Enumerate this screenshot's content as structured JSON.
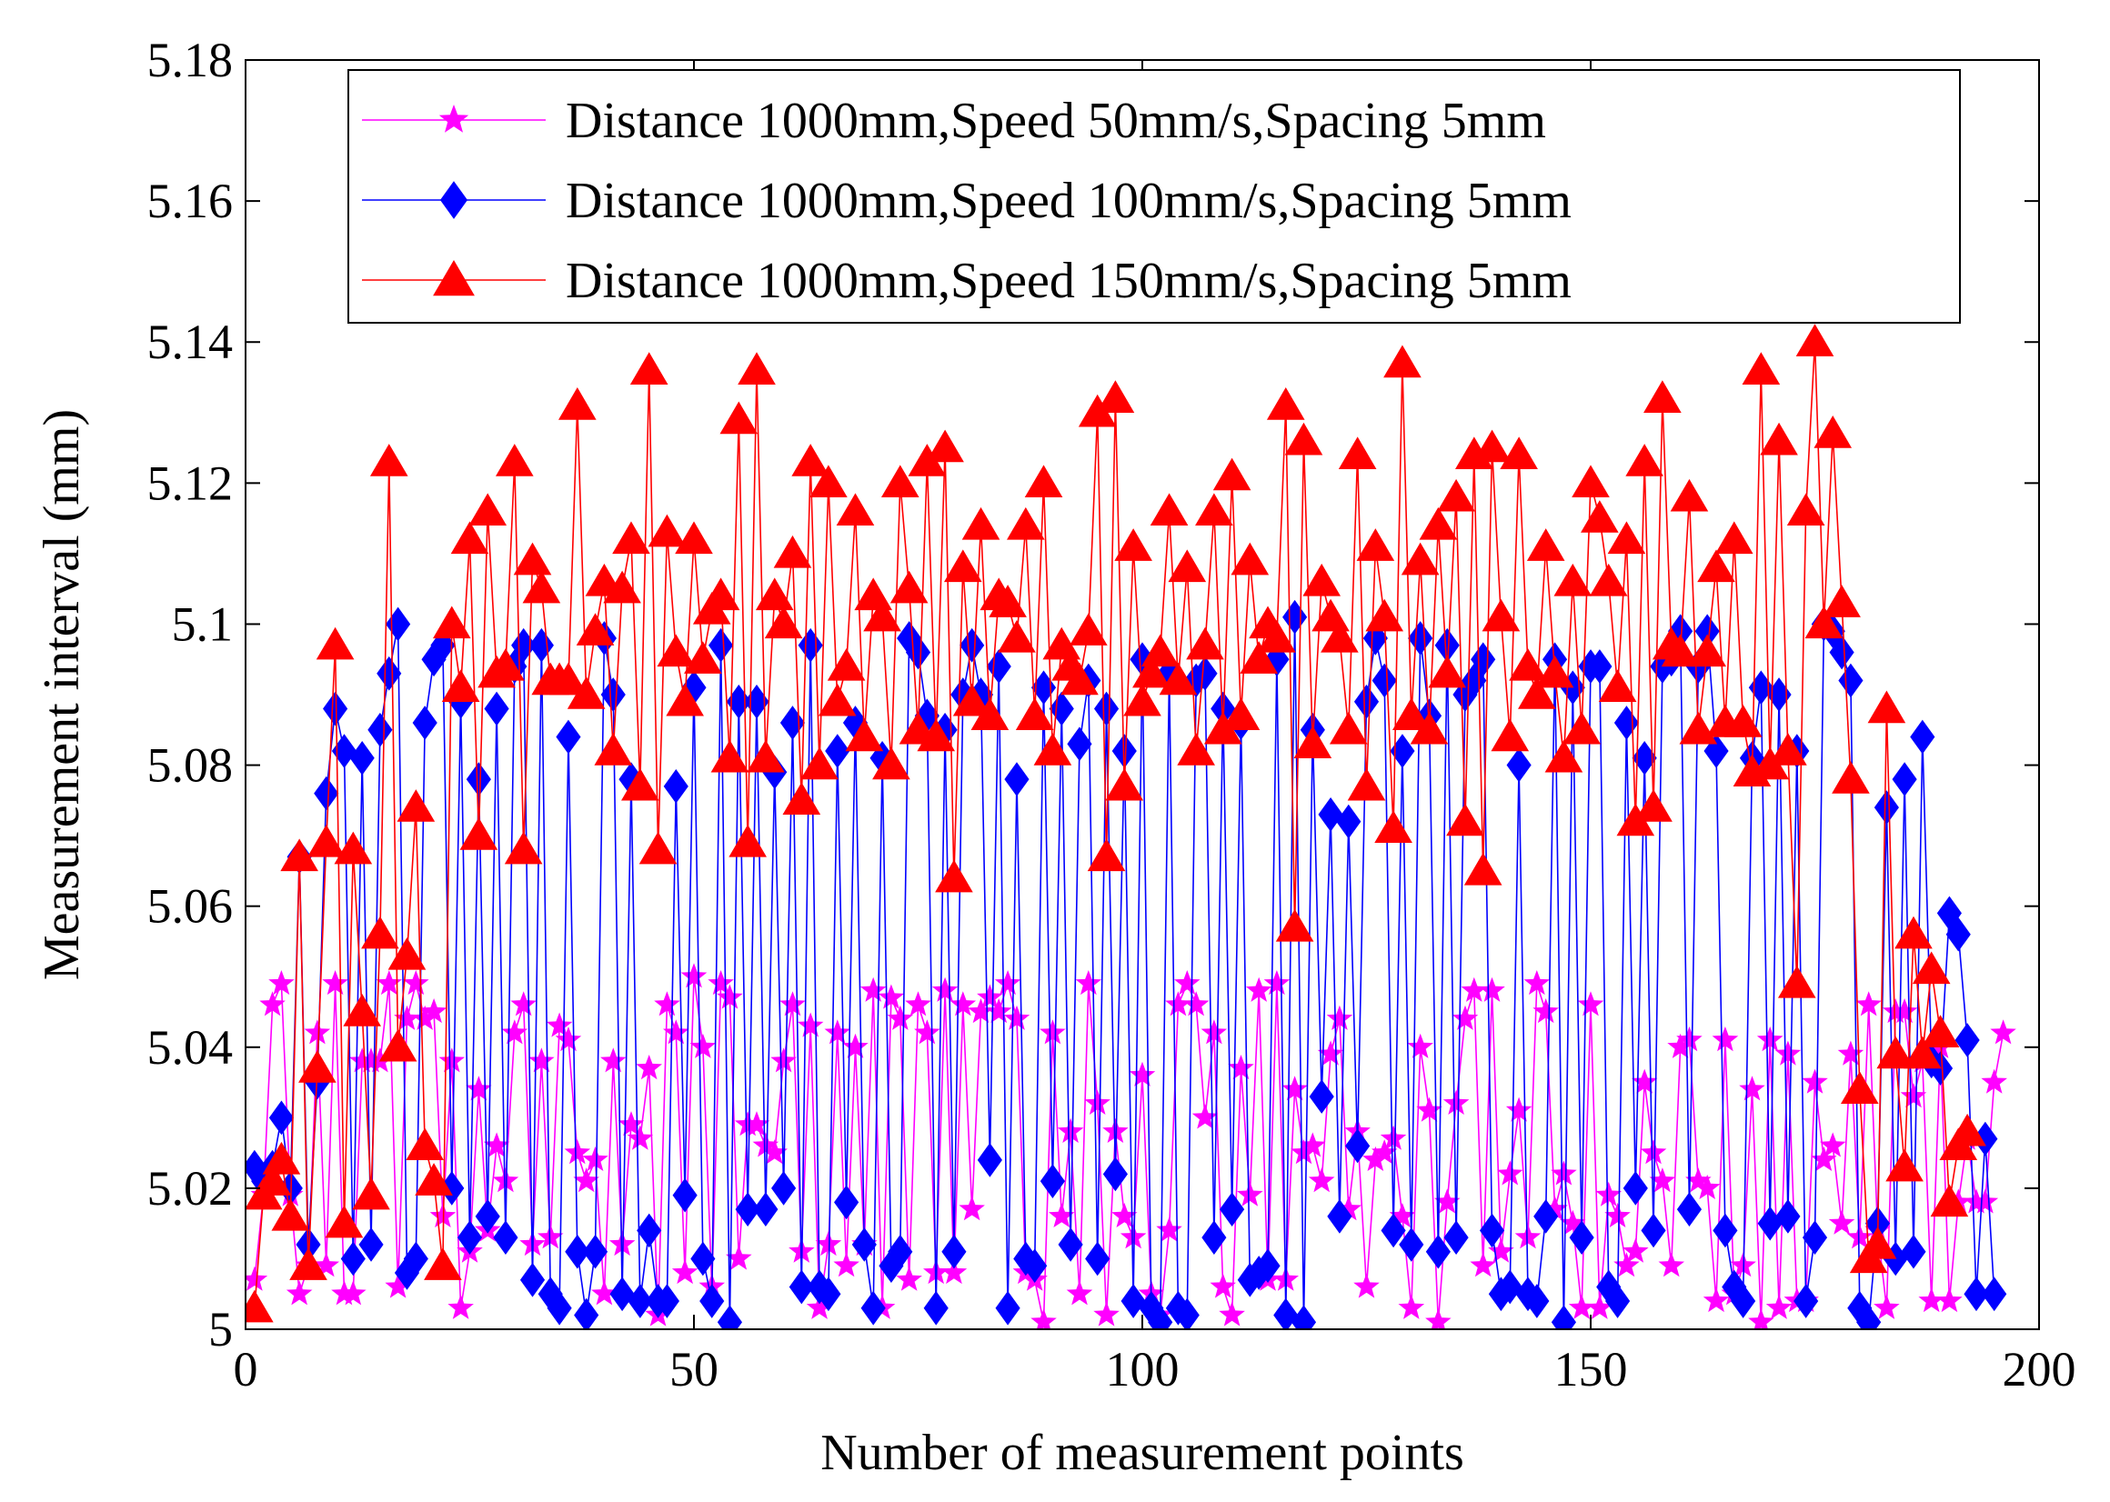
{
  "chart_data": {
    "type": "line",
    "xlabel": "Number of measurement points",
    "ylabel": "Measurement interval (mm)",
    "xlim": [
      0,
      200
    ],
    "ylim": [
      5.0,
      5.18
    ],
    "xticks": [
      0,
      50,
      100,
      150,
      200
    ],
    "xtick_labels": [
      "0",
      "50",
      "100",
      "150",
      "200"
    ],
    "yticks": [
      5.0,
      5.02,
      5.04,
      5.06,
      5.08,
      5.1,
      5.12,
      5.14,
      5.16,
      5.18
    ],
    "ytick_labels": [
      "5",
      "5.02",
      "5.04",
      "5.06",
      "5.08",
      "5.1",
      "5.12",
      "5.14",
      "5.16",
      "5.18"
    ],
    "grid": false,
    "legend_position": "top",
    "series": [
      {
        "name": "Distance 1000mm,Speed 50mm/s,Spacing 5mm",
        "color": "#ff00ff",
        "marker": "star",
        "values": [
          5.007,
          5.019,
          5.046,
          5.049,
          5.019,
          5.005,
          5.009,
          5.042,
          5.009,
          5.049,
          5.005,
          5.005,
          5.038,
          5.038,
          5.038,
          5.049,
          5.006,
          5.044,
          5.049,
          5.044,
          5.045,
          5.016,
          5.038,
          5.003,
          5.011,
          5.034,
          5.014,
          5.026,
          5.021,
          5.042,
          5.046,
          5.012,
          5.038,
          5.013,
          5.043,
          5.041,
          5.025,
          5.021,
          5.024,
          5.005,
          5.038,
          5.012,
          5.029,
          5.027,
          5.037,
          5.002,
          5.046,
          5.042,
          5.008,
          5.05,
          5.04,
          5.006,
          5.049,
          5.047,
          5.01,
          5.029,
          5.029,
          5.026,
          5.025,
          5.038,
          5.046,
          5.011,
          5.043,
          5.003,
          5.012,
          5.042,
          5.009,
          5.04,
          5.012,
          5.048,
          5.003,
          5.047,
          5.044,
          5.007,
          5.046,
          5.042,
          5.008,
          5.048,
          5.008,
          5.046,
          5.017,
          5.045,
          5.047,
          5.045,
          5.049,
          5.044,
          5.008,
          5.007,
          5.001,
          5.042,
          5.016,
          5.028,
          5.005,
          5.049,
          5.032,
          5.002,
          5.028,
          5.016,
          5.013,
          5.036,
          5.005,
          5.002,
          5.014,
          5.046,
          5.049,
          5.046,
          5.03,
          5.042,
          5.006,
          5.002,
          5.037,
          5.019,
          5.048,
          5.007,
          5.049,
          5.007,
          5.034,
          5.025,
          5.026,
          5.021,
          5.039,
          5.044,
          5.017,
          5.028,
          5.006,
          5.024,
          5.025,
          5.027,
          5.016,
          5.003,
          5.04,
          5.031,
          5.001,
          5.018,
          5.032,
          5.044,
          5.048,
          5.009,
          5.048,
          5.011,
          5.022,
          5.031,
          5.013,
          5.049,
          5.045,
          5.017,
          5.022,
          5.015,
          5.003,
          5.046,
          5.003,
          5.019,
          5.016,
          5.009,
          5.011,
          5.035,
          5.025,
          5.021,
          5.009,
          5.04,
          5.041,
          5.021,
          5.02,
          5.004,
          5.041,
          5.005,
          5.009,
          5.034,
          5.001,
          5.041,
          5.003,
          5.039,
          5.004,
          5.004,
          5.035,
          5.024,
          5.026,
          5.015,
          5.039,
          5.013,
          5.046,
          5.014,
          5.003,
          5.045,
          5.045,
          5.033,
          5.038,
          5.004,
          5.04,
          5.004,
          5.018,
          5.027,
          5.018,
          5.018,
          5.035,
          5.042
        ]
      },
      {
        "name": "Distance 1000mm,Speed 100mm/s,Spacing 5mm",
        "color": "#0000ff",
        "marker": "diamond",
        "values": [
          5.023,
          5.021,
          5.023,
          5.03,
          5.02,
          5.067,
          5.012,
          5.035,
          5.076,
          5.088,
          5.082,
          5.01,
          5.081,
          5.012,
          5.085,
          5.093,
          5.1,
          5.008,
          5.01,
          5.086,
          5.095,
          5.097,
          5.02,
          5.089,
          5.013,
          5.078,
          5.016,
          5.088,
          5.013,
          5.094,
          5.097,
          5.007,
          5.097,
          5.005,
          5.003,
          5.084,
          5.011,
          5.002,
          5.011,
          5.098,
          5.09,
          5.005,
          5.078,
          5.004,
          5.014,
          5.004,
          5.004,
          5.077,
          5.019,
          5.091,
          5.01,
          5.004,
          5.097,
          5.001,
          5.089,
          5.017,
          5.089,
          5.017,
          5.079,
          5.02,
          5.086,
          5.006,
          5.097,
          5.006,
          5.005,
          5.082,
          5.018,
          5.086,
          5.012,
          5.003,
          5.081,
          5.009,
          5.011,
          5.098,
          5.096,
          5.087,
          5.003,
          5.085,
          5.011,
          5.09,
          5.097,
          5.09,
          5.024,
          5.094,
          5.003,
          5.078,
          5.01,
          5.009,
          5.091,
          5.021,
          5.088,
          5.012,
          5.083,
          5.092,
          5.01,
          5.088,
          5.022,
          5.082,
          5.004,
          5.095,
          5.003,
          5.001,
          5.093,
          5.003,
          5.002,
          5.092,
          5.093,
          5.013,
          5.088,
          5.017,
          5.086,
          5.007,
          5.008,
          5.009,
          5.095,
          5.002,
          5.101,
          5.001,
          5.085,
          5.033,
          5.073,
          5.016,
          5.072,
          5.026,
          5.089,
          5.098,
          5.092,
          5.014,
          5.082,
          5.012,
          5.098,
          5.087,
          5.011,
          5.097,
          5.013,
          5.09,
          5.092,
          5.095,
          5.014,
          5.005,
          5.006,
          5.08,
          5.005,
          5.004,
          5.016,
          5.095,
          5.001,
          5.091,
          5.013,
          5.094,
          5.094,
          5.006,
          5.004,
          5.086,
          5.02,
          5.081,
          5.014,
          5.094,
          5.095,
          5.099,
          5.017,
          5.094,
          5.099,
          5.082,
          5.014,
          5.006,
          5.004,
          5.081,
          5.091,
          5.015,
          5.09,
          5.016,
          5.082,
          5.004,
          5.013,
          5.1,
          5.099,
          5.096,
          5.092,
          5.003,
          5.001,
          5.015,
          5.074,
          5.01,
          5.078,
          5.011,
          5.084,
          5.038,
          5.037,
          5.059,
          5.056,
          5.041,
          5.005,
          5.027,
          5.005
        ]
      },
      {
        "name": "Distance 1000mm,Speed 150mm/s,Spacing 5mm",
        "color": "#ff0000",
        "marker": "triangle",
        "values": [
          5.003,
          5.019,
          5.021,
          5.024,
          5.016,
          5.067,
          5.009,
          5.037,
          5.069,
          5.097,
          5.015,
          5.068,
          5.045,
          5.019,
          5.056,
          5.123,
          5.04,
          5.053,
          5.074,
          5.026,
          5.021,
          5.009,
          5.1,
          5.091,
          5.112,
          5.07,
          5.116,
          5.093,
          5.094,
          5.123,
          5.068,
          5.109,
          5.105,
          5.092,
          5.092,
          5.092,
          5.131,
          5.09,
          5.099,
          5.106,
          5.082,
          5.105,
          5.112,
          5.077,
          5.136,
          5.068,
          5.113,
          5.096,
          5.089,
          5.112,
          5.095,
          5.102,
          5.104,
          5.081,
          5.129,
          5.069,
          5.136,
          5.081,
          5.104,
          5.1,
          5.11,
          5.075,
          5.123,
          5.08,
          5.12,
          5.089,
          5.094,
          5.116,
          5.084,
          5.104,
          5.101,
          5.08,
          5.12,
          5.105,
          5.085,
          5.123,
          5.084,
          5.125,
          5.064,
          5.108,
          5.089,
          5.114,
          5.087,
          5.104,
          5.103,
          5.098,
          5.114,
          5.087,
          5.12,
          5.082,
          5.097,
          5.094,
          5.092,
          5.099,
          5.13,
          5.067,
          5.132,
          5.077,
          5.111,
          5.089,
          5.093,
          5.096,
          5.116,
          5.092,
          5.108,
          5.082,
          5.097,
          5.116,
          5.085,
          5.121,
          5.087,
          5.109,
          5.095,
          5.1,
          5.098,
          5.131,
          5.057,
          5.126,
          5.083,
          5.106,
          5.101,
          5.098,
          5.085,
          5.124,
          5.077,
          5.111,
          5.101,
          5.071,
          5.137,
          5.087,
          5.109,
          5.085,
          5.114,
          5.093,
          5.118,
          5.072,
          5.124,
          5.065,
          5.125,
          5.101,
          5.084,
          5.124,
          5.094,
          5.09,
          5.111,
          5.093,
          5.081,
          5.106,
          5.085,
          5.12,
          5.115,
          5.106,
          5.091,
          5.112,
          5.072,
          5.123,
          5.074,
          5.132,
          5.097,
          5.096,
          5.118,
          5.085,
          5.096,
          5.108,
          5.086,
          5.112,
          5.086,
          5.079,
          5.136,
          5.08,
          5.126,
          5.082,
          5.049,
          5.116,
          5.14,
          5.1,
          5.127,
          5.103,
          5.078,
          5.034,
          5.01,
          5.012,
          5.088,
          5.039,
          5.023,
          5.056,
          5.039,
          5.051,
          5.042,
          5.018,
          5.026,
          5.028
        ]
      }
    ]
  }
}
